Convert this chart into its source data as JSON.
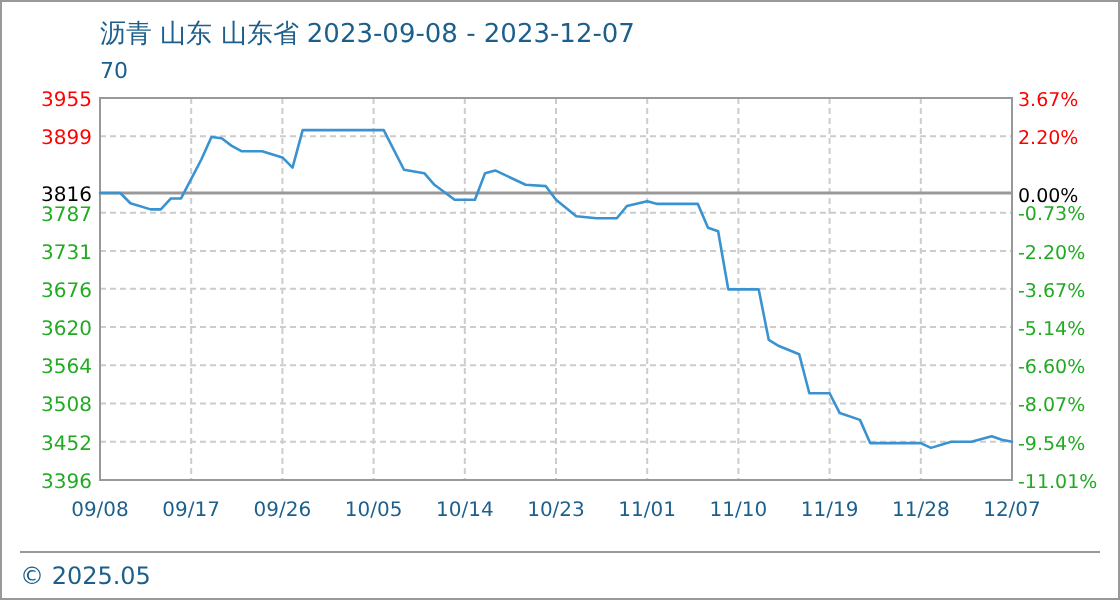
{
  "chart_data": {
    "type": "line",
    "title": "沥青 山东 山东省 2023-09-08 - 2023-12-07",
    "ylabel": "70",
    "annotations": [
      "© 2025.05"
    ],
    "x": [
      "2023-09-08",
      "2023-09-10",
      "2023-09-11",
      "2023-09-13",
      "2023-09-14",
      "2023-09-15",
      "2023-09-16",
      "2023-09-18",
      "2023-09-19",
      "2023-09-20",
      "2023-09-21",
      "2023-09-22",
      "2023-09-24",
      "2023-09-26",
      "2023-09-27",
      "2023-09-28",
      "2023-10-06",
      "2023-10-08",
      "2023-10-10",
      "2023-10-11",
      "2023-10-13",
      "2023-10-15",
      "2023-10-16",
      "2023-10-17",
      "2023-10-20",
      "2023-10-22",
      "2023-10-23",
      "2023-10-25",
      "2023-10-27",
      "2023-10-29",
      "2023-10-30",
      "2023-11-01",
      "2023-11-02",
      "2023-11-06",
      "2023-11-07",
      "2023-11-08",
      "2023-11-09",
      "2023-11-12",
      "2023-11-13",
      "2023-11-14",
      "2023-11-16",
      "2023-11-17",
      "2023-11-19",
      "2023-11-20",
      "2023-11-22",
      "2023-11-23",
      "2023-11-28",
      "2023-11-29",
      "2023-12-01",
      "2023-12-03",
      "2023-12-05",
      "2023-12-06",
      "2023-12-07"
    ],
    "series": [
      {
        "color": "#3a93d0",
        "values": [
          3816,
          3816,
          3801,
          3792,
          3792,
          3808,
          3808,
          3865,
          3898,
          3896,
          3885,
          3877,
          3877,
          3868,
          3853,
          3908,
          3908,
          3850,
          3845,
          3828,
          3806,
          3806,
          3845,
          3849,
          3828,
          3826,
          3806,
          3782,
          3779,
          3779,
          3797,
          3804,
          3800,
          3800,
          3765,
          3760,
          3675,
          3675,
          3601,
          3592,
          3580,
          3523,
          3523,
          3494,
          3484,
          3450,
          3450,
          3443,
          3452,
          3452,
          3460,
          3455,
          3452
        ]
      }
    ],
    "xlim": [
      "2023-09-08",
      "2023-12-07"
    ],
    "xticks": [
      {
        "value": "2023-09-08",
        "label": "09/08"
      },
      {
        "value": "2023-09-17",
        "label": "09/17"
      },
      {
        "value": "2023-09-26",
        "label": "09/26"
      },
      {
        "value": "2023-10-05",
        "label": "10/05"
      },
      {
        "value": "2023-10-14",
        "label": "10/14"
      },
      {
        "value": "2023-10-23",
        "label": "10/23"
      },
      {
        "value": "2023-11-01",
        "label": "11/01"
      },
      {
        "value": "2023-11-10",
        "label": "11/10"
      },
      {
        "value": "2023-11-19",
        "label": "11/19"
      },
      {
        "value": "2023-11-28",
        "label": "11/28"
      },
      {
        "value": "2023-12-07",
        "label": "12/07"
      }
    ],
    "ylim": [
      3396,
      3955
    ],
    "yticks": [
      3955,
      3899,
      3816,
      3787,
      3731,
      3676,
      3620,
      3564,
      3508,
      3452,
      3396
    ],
    "y2lim": [
      -11.01,
      3.67
    ],
    "y2ticks": [
      {
        "value": 3.67,
        "label": "3.67%"
      },
      {
        "value": 2.2,
        "label": "2.20%"
      },
      {
        "value": 0,
        "label": "0.00%"
      },
      {
        "value": -0.73,
        "label": "-0.73%"
      },
      {
        "value": -2.2,
        "label": "-2.20%"
      },
      {
        "value": -3.67,
        "label": "-3.67%"
      },
      {
        "value": -5.14,
        "label": "-5.14%"
      },
      {
        "value": -6.6,
        "label": "-6.60%"
      },
      {
        "value": -8.07,
        "label": "-8.07%"
      },
      {
        "value": -9.54,
        "label": "-9.54%"
      },
      {
        "value": -11.01,
        "label": "-11.01%"
      }
    ],
    "ref_lines": [
      {
        "axis": "y",
        "value": 3816,
        "color": "#999999"
      }
    ],
    "grid": true,
    "marker": "none",
    "line_style": "solid"
  }
}
